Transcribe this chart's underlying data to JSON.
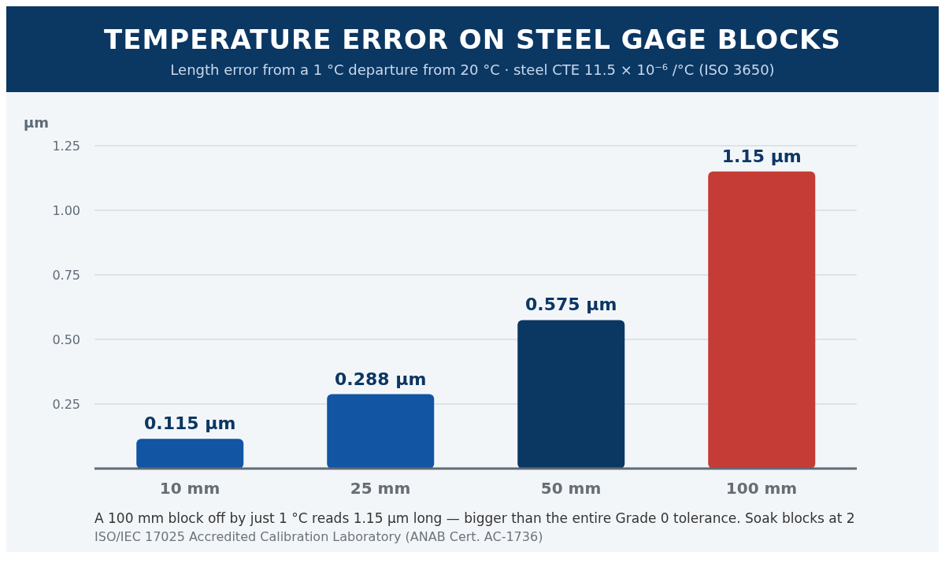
{
  "chart_data": {
    "type": "bar",
    "title": "TEMPERATURE ERROR ON STEEL GAGE BLOCKS",
    "subtitle": "Length error from a 1 °C departure from 20 °C  ·  steel CTE 11.5 × 10⁻⁶ /°C (ISO 3650)",
    "ylabel": "µm",
    "categories": [
      "10 mm",
      "25 mm",
      "50 mm",
      "100 mm"
    ],
    "values": [
      0.115,
      0.288,
      0.575,
      1.15
    ],
    "colors": [
      "#1155a3",
      "#1155a3",
      "#0b3763",
      "#c43c35"
    ],
    "value_labels": [
      "0.115 µm",
      "0.288 µm",
      "0.575 µm",
      "1.15 µm"
    ],
    "ylim": [
      0,
      1.25
    ],
    "yticks": [
      0.25,
      {
        "value": 0.5,
        "label": "0.50"
      },
      0.75,
      {
        "value": 1,
        "label": "1.00"
      },
      1.25
    ],
    "grid": "y",
    "annotations": [
      "A 100 mm block off by just 1 °C reads 1.15 µm long — bigger than the entire Grade 0 tolerance. Soak blocks at 2",
      "ISO/IEC 17025 Accredited Calibration Laboratory (ANAB Cert. AC-1736)"
    ]
  }
}
